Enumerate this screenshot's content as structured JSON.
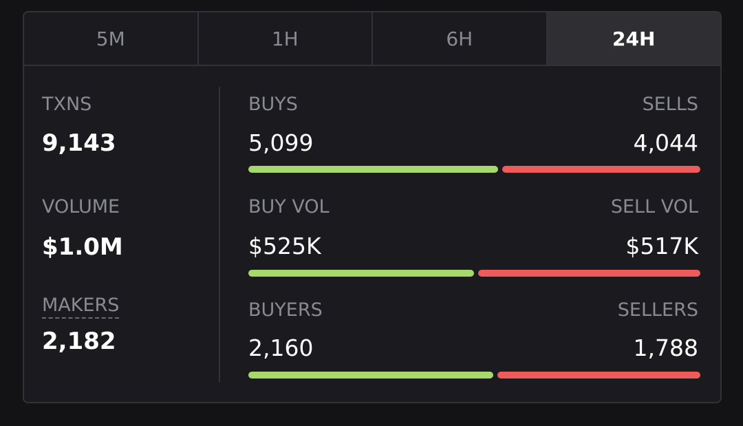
{
  "tabs": [
    {
      "label": "5M",
      "active": false
    },
    {
      "label": "1H",
      "active": false
    },
    {
      "label": "6H",
      "active": false
    },
    {
      "label": "24H",
      "active": true
    }
  ],
  "summary": {
    "txns_label": "TXNS",
    "txns_value": "9,143",
    "volume_label": "VOLUME",
    "volume_value": "$1.0M",
    "makers_label": "MAKERS",
    "makers_value": "2,182"
  },
  "breakdown": [
    {
      "left_label": "BUYS",
      "left_value": "5,099",
      "right_label": "SELLS",
      "right_value": "4,044",
      "buy_fraction": 0.5577
    },
    {
      "left_label": "BUY VOL",
      "left_value": "$525K",
      "right_label": "SELL VOL",
      "right_value": "$517K",
      "buy_fraction": 0.5038
    },
    {
      "left_label": "BUYERS",
      "left_value": "2,160",
      "right_label": "SELLERS",
      "right_value": "1,788",
      "buy_fraction": 0.5471
    }
  ],
  "colors": {
    "buy": "#a7d96a",
    "sell": "#ef5b5b"
  }
}
